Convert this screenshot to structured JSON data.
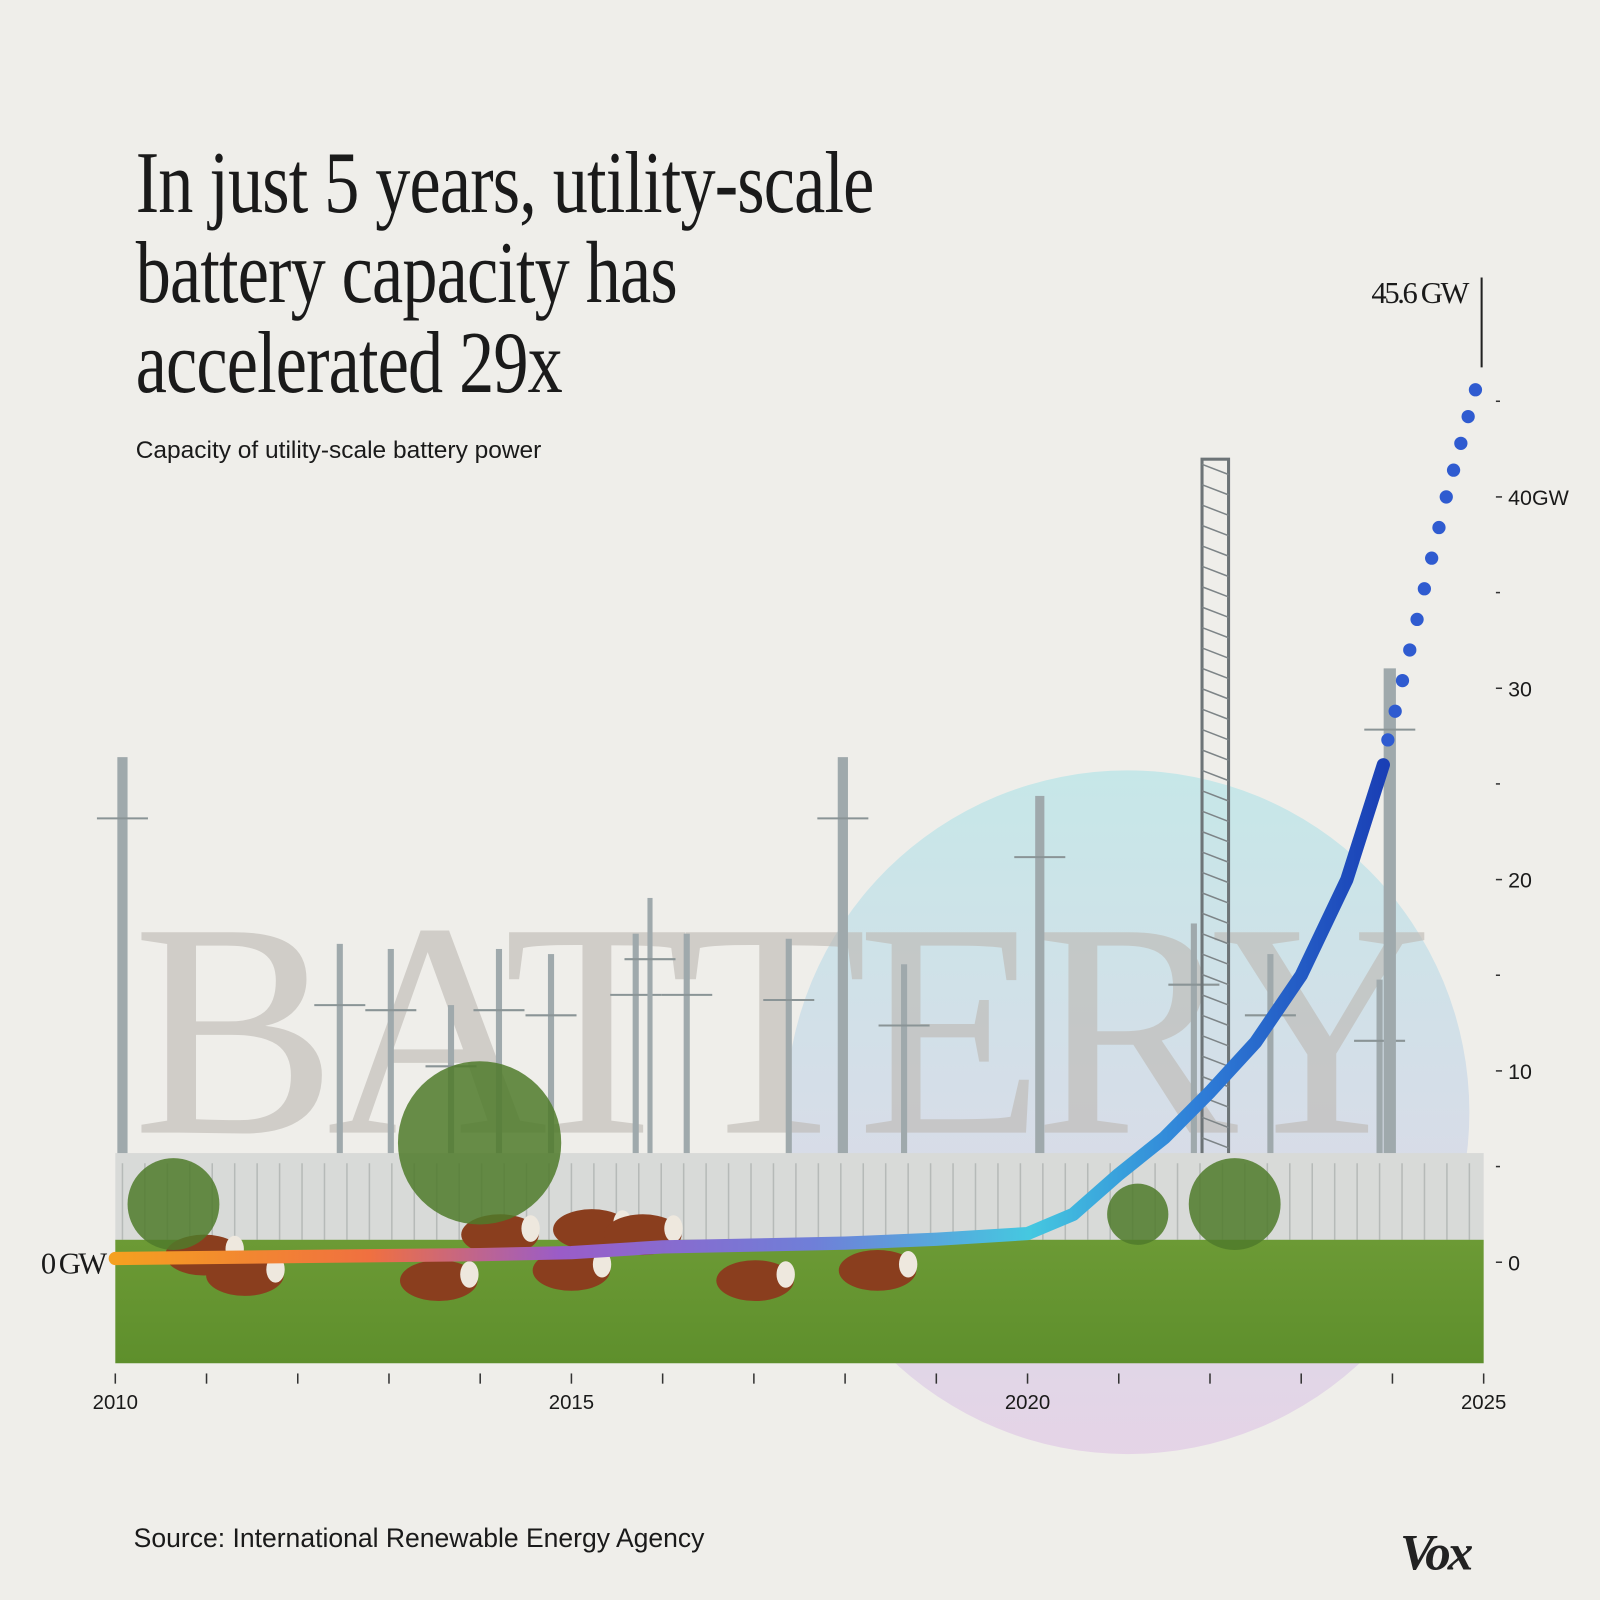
{
  "title_lines": [
    "In just 5 years, utility-scale",
    "battery capacity has",
    "accelerated 29x"
  ],
  "subtitle": "Capacity of utility-scale battery power",
  "source": "Source: International Renewable Energy Agency",
  "logo": "Vox",
  "watermark": "BATTERY",
  "colors": {
    "background": "#efeeea",
    "curve_start": "#f5a020",
    "curve_mid": "#8a5cd0",
    "curve_cyan": "#45c8e0",
    "curve_end": "#1a3fb5",
    "dots": "#2f5bd0"
  },
  "chart_data": {
    "type": "line",
    "title": "In just 5 years, utility-scale battery capacity has accelerated 29x",
    "subtitle": "Capacity of utility-scale battery power",
    "x_ticks": [
      "2010",
      "2015",
      "2020",
      "2025"
    ],
    "xlim": [
      2010,
      2025
    ],
    "y_ticks": [
      {
        "v": 0,
        "label": "0"
      },
      {
        "v": 10,
        "label": "10"
      },
      {
        "v": 20,
        "label": "20"
      },
      {
        "v": 30,
        "label": "30"
      },
      {
        "v": 40,
        "label": "40GW"
      }
    ],
    "ylim": [
      -5,
      45
    ],
    "left_label": "0 GW",
    "end_label": "45.6 GW",
    "end_value": 45.6,
    "grid": false,
    "series": [
      {
        "style": "solid",
        "x": [
          2010,
          2012,
          2014,
          2015,
          2016,
          2018,
          2019,
          2020,
          2020.5,
          2021,
          2021.5,
          2022,
          2022.5,
          2023,
          2023.5,
          2023.9
        ],
        "y": [
          0.2,
          0.3,
          0.4,
          0.5,
          0.8,
          1.0,
          1.2,
          1.5,
          2.5,
          4.6,
          6.5,
          8.9,
          11.5,
          15,
          20,
          26
        ]
      },
      {
        "style": "dotted",
        "x": [
          2023.95,
          2024.03,
          2024.11,
          2024.19,
          2024.27,
          2024.35,
          2024.43,
          2024.51,
          2024.59,
          2024.67,
          2024.75,
          2024.83,
          2024.91
        ],
        "y": [
          27.3,
          28.8,
          30.4,
          32,
          33.6,
          35.2,
          36.8,
          38.4,
          40,
          41.4,
          42.8,
          44.2,
          45.6
        ]
      }
    ]
  }
}
